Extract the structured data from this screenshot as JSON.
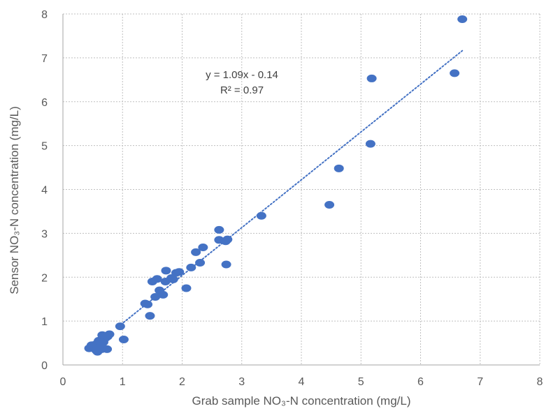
{
  "chart_data": {
    "type": "scatter",
    "title": "",
    "xlabel": "Grab sample NO₃-N concentration (mg/L)",
    "ylabel": "Sensor NO₃-N concentration (mg/L)",
    "xlim": [
      0,
      8
    ],
    "ylim": [
      0,
      8
    ],
    "xticks": [
      0,
      1,
      2,
      3,
      4,
      5,
      6,
      7,
      8
    ],
    "yticks": [
      0,
      1,
      2,
      3,
      4,
      5,
      6,
      7,
      8
    ],
    "grid": true,
    "grid_style": "dotted",
    "legend": "none",
    "marker_color": "#4472C4",
    "trendline": {
      "type": "linear",
      "style": "dotted",
      "slope": 1.09,
      "intercept": -0.14,
      "x_range": [
        0.97,
        6.7
      ],
      "equation_label": "y = 1.09x - 0.14",
      "r2_label": "R² = 0.97"
    },
    "series": [
      {
        "points": [
          [
            0.44,
            0.38
          ],
          [
            0.48,
            0.45
          ],
          [
            0.52,
            0.4
          ],
          [
            0.55,
            0.47
          ],
          [
            0.58,
            0.3
          ],
          [
            0.6,
            0.55
          ],
          [
            0.62,
            0.42
          ],
          [
            0.65,
            0.36
          ],
          [
            0.68,
            0.52
          ],
          [
            0.72,
            0.62
          ],
          [
            0.75,
            0.65
          ],
          [
            0.78,
            0.7
          ],
          [
            0.56,
            0.33
          ],
          [
            0.74,
            0.36
          ],
          [
            0.66,
            0.68
          ],
          [
            0.96,
            0.88
          ],
          [
            1.02,
            0.58
          ],
          [
            1.38,
            1.4
          ],
          [
            1.42,
            1.38
          ],
          [
            1.46,
            1.12
          ],
          [
            1.5,
            1.9
          ],
          [
            1.55,
            1.55
          ],
          [
            1.58,
            1.96
          ],
          [
            1.62,
            1.7
          ],
          [
            1.68,
            1.6
          ],
          [
            1.72,
            1.9
          ],
          [
            1.73,
            2.15
          ],
          [
            1.82,
            1.98
          ],
          [
            1.85,
            1.95
          ],
          [
            1.9,
            2.1
          ],
          [
            1.95,
            2.12
          ],
          [
            2.07,
            1.75
          ],
          [
            2.15,
            2.22
          ],
          [
            2.23,
            2.57
          ],
          [
            2.3,
            2.33
          ],
          [
            2.35,
            2.68
          ],
          [
            2.62,
            3.08
          ],
          [
            2.62,
            2.85
          ],
          [
            2.73,
            2.82
          ],
          [
            2.76,
            2.86
          ],
          [
            2.74,
            2.29
          ],
          [
            3.33,
            3.4
          ],
          [
            4.47,
            3.65
          ],
          [
            4.63,
            4.48
          ],
          [
            5.16,
            5.04
          ],
          [
            5.18,
            6.53
          ],
          [
            6.57,
            6.65
          ],
          [
            6.7,
            7.88
          ]
        ]
      }
    ]
  }
}
